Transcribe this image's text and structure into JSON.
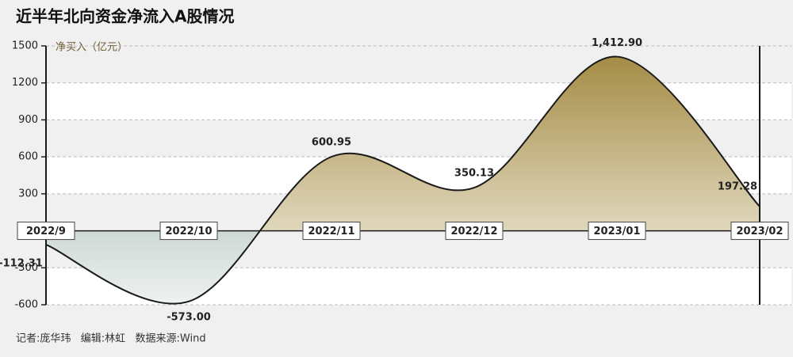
{
  "chart_data": {
    "type": "area",
    "title": "近半年北向资金净流入A股情况",
    "y_label": "净买入（亿元）",
    "footer": "记者:庞华玮   编辑:林虹   数据来源:Wind",
    "categories": [
      "2022/9",
      "2022/10",
      "2022/11",
      "2022/12",
      "2023/01",
      "2023/02"
    ],
    "values": [
      -112.31,
      -573.0,
      600.95,
      350.13,
      1412.9,
      197.28
    ],
    "value_labels": [
      "-112.31",
      "-573.00",
      "600.95",
      "350.13",
      "1,412.90",
      "197.28"
    ],
    "positive_color": "#a48c45",
    "negative_color": "#7f9b94",
    "ylim": [
      -600,
      1500
    ],
    "yticks": [
      -600,
      -300,
      300,
      600,
      900,
      1200,
      1500
    ],
    "grid": true
  }
}
